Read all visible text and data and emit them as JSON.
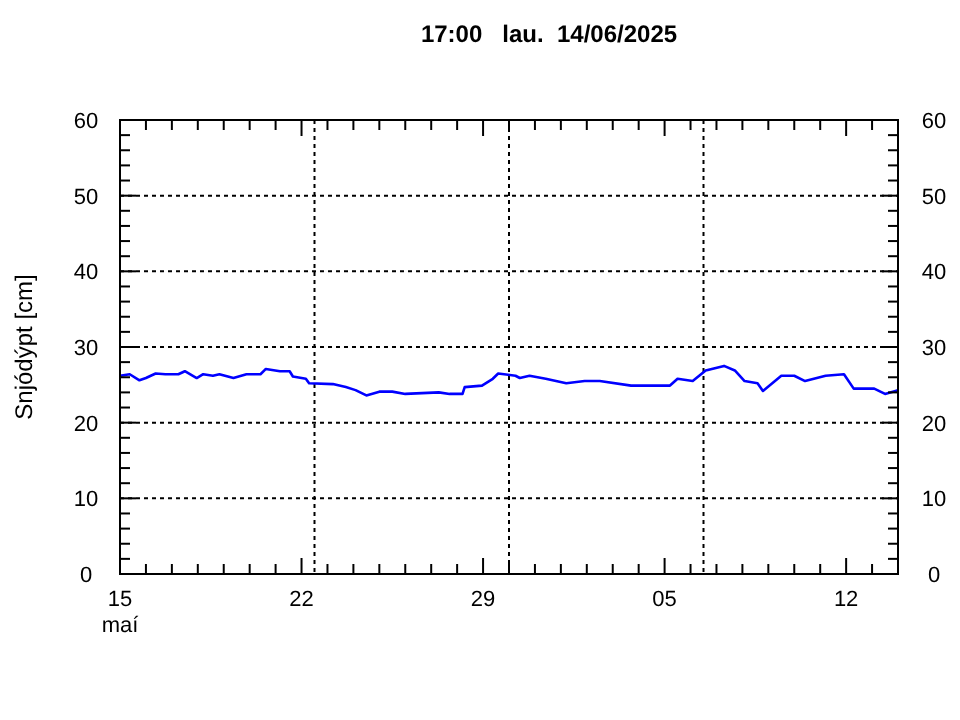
{
  "chart_data": {
    "type": "line",
    "title": "17:00   lau.  14/06/2025",
    "ylabel": "Snjódýpt [cm]",
    "xlim": [
      "2025-05-15",
      "2025-06-14"
    ],
    "xticks": [
      {
        "value": "2025-05-15",
        "label": "15\nmaí"
      },
      {
        "value": "2025-05-16",
        "label": null
      },
      {
        "value": "2025-05-17",
        "label": null
      },
      {
        "value": "2025-05-18",
        "label": null
      },
      {
        "value": "2025-05-19",
        "label": null
      },
      {
        "value": "2025-05-20",
        "label": null
      },
      {
        "value": "2025-05-21",
        "label": null
      },
      {
        "value": "2025-05-22",
        "label": "22"
      },
      {
        "value": "2025-05-23",
        "label": null
      },
      {
        "value": "2025-05-24",
        "label": null
      },
      {
        "value": "2025-05-25",
        "label": null
      },
      {
        "value": "2025-05-26",
        "label": null
      },
      {
        "value": "2025-05-27",
        "label": null
      },
      {
        "value": "2025-05-28",
        "label": null
      },
      {
        "value": "2025-05-29",
        "label": "29"
      },
      {
        "value": "2025-05-30",
        "label": null
      },
      {
        "value": "2025-05-31",
        "label": null
      },
      {
        "value": "2025-06-01",
        "label": null
      },
      {
        "value": "2025-06-02",
        "label": null
      },
      {
        "value": "2025-06-03",
        "label": null
      },
      {
        "value": "2025-06-04",
        "label": null
      },
      {
        "value": "2025-06-05",
        "label": "05"
      },
      {
        "value": "2025-06-06",
        "label": null
      },
      {
        "value": "2025-06-07",
        "label": null
      },
      {
        "value": "2025-06-08",
        "label": null
      },
      {
        "value": "2025-06-09",
        "label": null
      },
      {
        "value": "2025-06-10",
        "label": null
      },
      {
        "value": "2025-06-11",
        "label": null
      },
      {
        "value": "2025-06-12",
        "label": "12"
      },
      {
        "value": "2025-06-13",
        "label": null
      },
      {
        "value": "2025-06-14",
        "label": null
      }
    ],
    "ylim": [
      0,
      60
    ],
    "yticks": [
      0,
      {
        "value": 2,
        "label": null
      },
      {
        "value": 4,
        "label": null
      },
      {
        "value": 6,
        "label": null
      },
      {
        "value": 8,
        "label": null
      },
      10,
      {
        "value": 12,
        "label": null
      },
      {
        "value": 14,
        "label": null
      },
      {
        "value": 16,
        "label": null
      },
      {
        "value": 18,
        "label": null
      },
      20,
      {
        "value": 22,
        "label": null
      },
      {
        "value": 24,
        "label": null
      },
      {
        "value": 26,
        "label": null
      },
      {
        "value": 28,
        "label": null
      },
      30,
      {
        "value": 32,
        "label": null
      },
      {
        "value": 34,
        "label": null
      },
      {
        "value": 36,
        "label": null
      },
      {
        "value": 38,
        "label": null
      },
      40,
      {
        "value": 42,
        "label": null
      },
      {
        "value": 44,
        "label": null
      },
      {
        "value": 46,
        "label": null
      },
      {
        "value": 48,
        "label": null
      },
      50,
      {
        "value": 52,
        "label": null
      },
      {
        "value": 54,
        "label": null
      },
      {
        "value": 56,
        "label": null
      },
      {
        "value": 58,
        "label": null
      },
      60
    ],
    "y2lim": [
      0,
      60
    ],
    "y2ticks": [
      0,
      {
        "value": 2,
        "label": null
      },
      {
        "value": 4,
        "label": null
      },
      {
        "value": 6,
        "label": null
      },
      {
        "value": 8,
        "label": null
      },
      10,
      {
        "value": 12,
        "label": null
      },
      {
        "value": 14,
        "label": null
      },
      {
        "value": 16,
        "label": null
      },
      {
        "value": 18,
        "label": null
      },
      20,
      {
        "value": 22,
        "label": null
      },
      {
        "value": 24,
        "label": null
      },
      {
        "value": 26,
        "label": null
      },
      {
        "value": 28,
        "label": null
      },
      30,
      {
        "value": 32,
        "label": null
      },
      {
        "value": 34,
        "label": null
      },
      {
        "value": 36,
        "label": null
      },
      {
        "value": 38,
        "label": null
      },
      40,
      {
        "value": 42,
        "label": null
      },
      {
        "value": 44,
        "label": null
      },
      {
        "value": 46,
        "label": null
      },
      {
        "value": 48,
        "label": null
      },
      50,
      {
        "value": 52,
        "label": null
      },
      {
        "value": 54,
        "label": null
      },
      {
        "value": 56,
        "label": null
      },
      {
        "value": 58,
        "label": null
      },
      60
    ],
    "grid": "y",
    "marker": "none",
    "line_style": "solid",
    "ref_lines": [
      {
        "axis": "x",
        "value": "2025-05-22T12:00",
        "line_style": "dotted",
        "color": "#000000"
      },
      {
        "axis": "x",
        "value": "2025-05-30T00:00",
        "line_style": "dotted",
        "color": "#000000"
      },
      {
        "axis": "x",
        "value": "2025-06-06T12:00",
        "line_style": "dotted",
        "color": "#000000"
      }
    ],
    "series": [
      {
        "color": "#0000ff",
        "x": [
          "2025-05-15T00:00",
          "2025-05-15T09:00",
          "2025-05-15T18:00",
          "2025-05-16T00:00",
          "2025-05-16T09:00",
          "2025-05-16T18:00",
          "2025-05-17T06:00",
          "2025-05-17T12:00",
          "2025-05-17T23:00",
          "2025-05-18T05:00",
          "2025-05-18T14:00",
          "2025-05-18T20:00",
          "2025-05-19T09:00",
          "2025-05-19T21:00",
          "2025-05-20T10:00",
          "2025-05-20T15:00",
          "2025-05-21T04:00",
          "2025-05-21T13:00",
          "2025-05-21T16:00",
          "2025-05-22T04:00",
          "2025-05-22T07:00",
          "2025-05-23T05:00",
          "2025-05-23T17:00",
          "2025-05-24T02:00",
          "2025-05-24T12:00",
          "2025-05-25T00:00",
          "2025-05-25T12:00",
          "2025-05-26T00:00",
          "2025-05-27T07:00",
          "2025-05-27T17:00",
          "2025-05-28T05:00",
          "2025-05-28T07:00",
          "2025-05-28T23:00",
          "2025-05-29T09:00",
          "2025-05-29T14:00",
          "2025-05-30T06:00",
          "2025-05-30T10:00",
          "2025-05-30T19:00",
          "2025-05-31T10:00",
          "2025-06-01T05:00",
          "2025-06-01T22:00",
          "2025-06-02T12:00",
          "2025-06-03T17:00",
          "2025-06-05T05:00",
          "2025-06-05T12:00",
          "2025-06-06T02:00",
          "2025-06-06T14:00",
          "2025-06-07T07:00",
          "2025-06-07T17:00",
          "2025-06-08T02:00",
          "2025-06-08T14:00",
          "2025-06-08T19:00",
          "2025-06-09T12:00",
          "2025-06-10T00:00",
          "2025-06-10T10:00",
          "2025-06-11T05:00",
          "2025-06-11T22:00",
          "2025-06-12T07:00",
          "2025-06-13T02:00",
          "2025-06-13T12:00",
          "2025-06-14T00:00"
        ],
        "values": [
          26.2,
          26.4,
          25.6,
          25.9,
          26.5,
          26.4,
          26.4,
          26.8,
          25.9,
          26.4,
          26.2,
          26.4,
          25.9,
          26.4,
          26.4,
          27.1,
          26.8,
          26.8,
          26.1,
          25.8,
          25.2,
          25.1,
          24.7,
          24.3,
          23.6,
          24.1,
          24.1,
          23.8,
          24.0,
          23.8,
          23.8,
          24.7,
          24.9,
          25.8,
          26.5,
          26.2,
          25.9,
          26.2,
          25.8,
          25.2,
          25.5,
          25.5,
          24.9,
          24.9,
          25.8,
          25.5,
          26.9,
          27.5,
          26.9,
          25.5,
          25.2,
          24.2,
          26.2,
          26.2,
          25.5,
          26.2,
          26.4,
          24.5,
          24.5,
          23.8,
          24.3
        ]
      }
    ]
  }
}
